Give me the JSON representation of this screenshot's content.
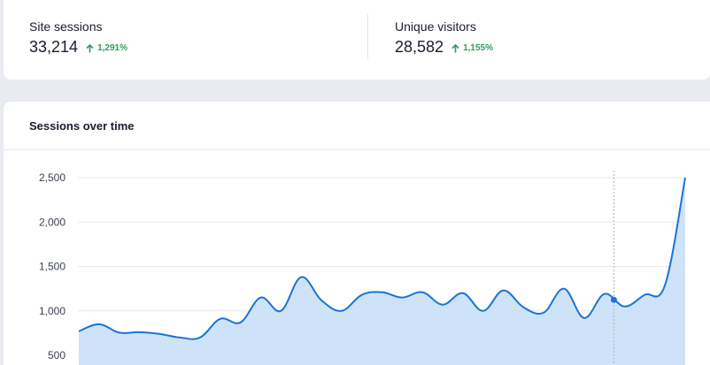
{
  "stats": {
    "sessions": {
      "label": "Site sessions",
      "value": "33,214",
      "change": "1,291%"
    },
    "visitors": {
      "label": "Unique visitors",
      "value": "28,582",
      "change": "1,155%"
    }
  },
  "chart": {
    "title": "Sessions over time"
  },
  "colors": {
    "accent": "#1a73d9",
    "fill": "#cfe3f8",
    "positive": "#2a9d5c"
  },
  "chart_data": {
    "type": "area",
    "yticks": [
      "2,500",
      "2,000",
      "1,500",
      "1,000",
      "500"
    ],
    "ytick_values": [
      2500,
      2000,
      1500,
      1000,
      500
    ],
    "ylim": [
      500,
      2500
    ],
    "grid": true,
    "highlight_index": 45,
    "values": [
      770,
      850,
      755,
      760,
      740,
      700,
      700,
      910,
      870,
      1150,
      1000,
      1380,
      1120,
      1000,
      1180,
      1210,
      1150,
      1210,
      1070,
      1200,
      1000,
      1230,
      1040,
      980,
      1250,
      920,
      1190,
      1050,
      1180,
      1290,
      2500
    ]
  }
}
